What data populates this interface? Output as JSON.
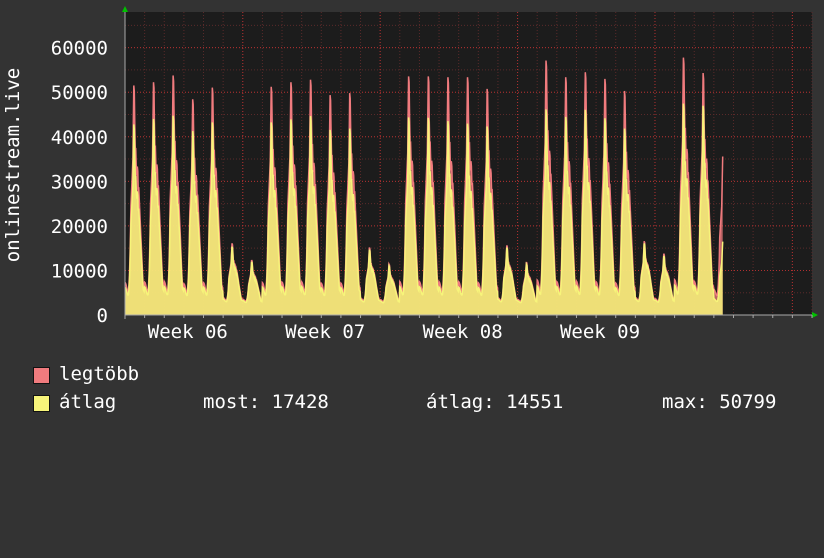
{
  "chart_data": {
    "type": "area",
    "ylabel": "onlinestream.live",
    "ylim": [
      0,
      68000
    ],
    "yticks": [
      0,
      10000,
      20000,
      30000,
      40000,
      50000,
      60000
    ],
    "ytick_labels": [
      "0",
      "10000",
      "20000",
      "30000",
      "40000",
      "50000",
      "60000"
    ],
    "xtick_labels": [
      "Week 06",
      "Week 07",
      "Week 08",
      "Week 09"
    ],
    "grid": true,
    "legend_placement": "bottom-left",
    "days": 35,
    "daily_peaks": [
      {
        "day": 1,
        "max": 54800,
        "avg": 45500
      },
      {
        "day": 2,
        "max": 55600,
        "avg": 46800
      },
      {
        "day": 3,
        "max": 57200,
        "avg": 47600
      },
      {
        "day": 4,
        "max": 51500,
        "avg": 43900
      },
      {
        "day": 5,
        "max": 54300,
        "avg": 46000
      },
      {
        "day": 6,
        "max": 17000,
        "avg": 16200
      },
      {
        "day": 7,
        "max": 13000,
        "avg": 12600
      },
      {
        "day": 8,
        "max": 54500,
        "avg": 46000
      },
      {
        "day": 9,
        "max": 55600,
        "avg": 46700
      },
      {
        "day": 10,
        "max": 56200,
        "avg": 47500
      },
      {
        "day": 11,
        "max": 52500,
        "avg": 44200
      },
      {
        "day": 12,
        "max": 53000,
        "avg": 44500
      },
      {
        "day": 13,
        "max": 16000,
        "avg": 15500
      },
      {
        "day": 14,
        "max": 12000,
        "avg": 11600
      },
      {
        "day": 15,
        "max": 57000,
        "avg": 47200
      },
      {
        "day": 16,
        "max": 57000,
        "avg": 47100
      },
      {
        "day": 17,
        "max": 56800,
        "avg": 46300
      },
      {
        "day": 18,
        "max": 56800,
        "avg": 45700
      },
      {
        "day": 19,
        "max": 54000,
        "avg": 45000
      },
      {
        "day": 20,
        "max": 16500,
        "avg": 16000
      },
      {
        "day": 21,
        "max": 12500,
        "avg": 12000
      },
      {
        "day": 22,
        "max": 60800,
        "avg": 49100
      },
      {
        "day": 23,
        "max": 56800,
        "avg": 47300
      },
      {
        "day": 24,
        "max": 58000,
        "avg": 49000
      },
      {
        "day": 25,
        "max": 56400,
        "avg": 47000
      },
      {
        "day": 26,
        "max": 53500,
        "avg": 44500
      },
      {
        "day": 27,
        "max": 17500,
        "avg": 17000
      },
      {
        "day": 28,
        "max": 14500,
        "avg": 14000
      },
      {
        "day": 29,
        "max": 61500,
        "avg": 50500
      },
      {
        "day": 30,
        "max": 57800,
        "avg": 50000
      },
      {
        "day": 31,
        "max": 37800,
        "avg": 17428
      }
    ],
    "series": [
      {
        "name": "legtöbb",
        "color": "#f07b7e"
      },
      {
        "name": "átlag",
        "color": "#f7f47a"
      }
    ]
  },
  "legend": {
    "max_label": "legtöbb",
    "avg_label": "átlag",
    "most_text": "most: 17428",
    "atlag_text": "átlag: 14551",
    "max_text": "max: 50799"
  },
  "colors": {
    "background": "#333333",
    "plot_background": "#1c1c1c",
    "grid_minor": "#5a2a2a",
    "grid_major": "#b03030",
    "axis": "#aaaaaa",
    "arrow": "#00c000",
    "max_series": "#f07b7e",
    "avg_series": "#f7f47a"
  }
}
